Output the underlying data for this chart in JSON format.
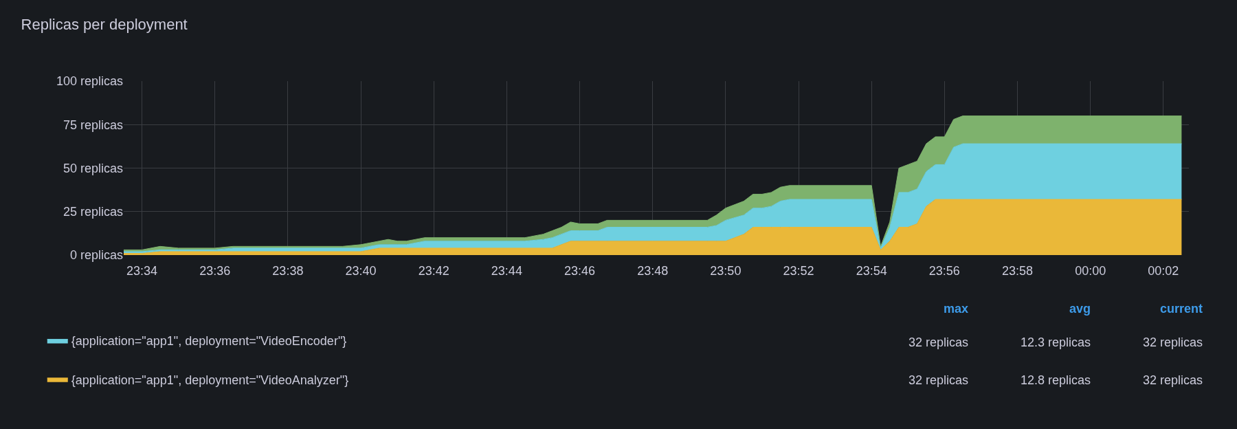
{
  "chart_data": {
    "type": "area",
    "title": "Replicas per deployment",
    "stacked": true,
    "x": [
      "--01-01T23:33:30",
      "--01-01T23:34",
      "--01-01T23:34:30",
      "--01-01T23:35",
      "--01-01T23:36",
      "--01-01T23:36:30",
      "--01-01T23:39:30",
      "--01-01T23:40",
      "--01-01T23:40:30",
      "--01-01T23:40:45",
      "--01-01T23:41",
      "--01-01T23:41:15",
      "--01-01T23:41:45",
      "--01-01T23:44:30",
      "--01-01T23:45",
      "--01-01T23:45:15",
      "--01-01T23:45:30",
      "--01-01T23:45:45",
      "--01-01T23:46",
      "--01-01T23:46:30",
      "--01-01T23:46:45",
      "--01-01T23:49:30",
      "--01-01T23:49:45",
      "--01-01T23:50",
      "--01-01T23:50:30",
      "--01-01T23:50:45",
      "--01-01T23:51",
      "--01-01T23:51:15",
      "--01-01T23:51:30",
      "--01-01T23:51:45",
      "--01-01T23:54",
      "--01-01T23:54:15",
      "--01-01T23:54:30",
      "--01-01T23:54:45",
      "--01-01T23:55",
      "--01-01T23:55:15",
      "--01-01T23:55:30",
      "--01-01T23:55:45",
      "--01-01T23:56",
      "--01-01T23:56:15",
      "--01-01T23:56:30",
      "--01-02T00:02:30"
    ],
    "series": [
      {
        "name": "{application=\"app1\", deployment=\"VideoAnalyzer\"}",
        "color": "#eab839",
        "values": [
          1,
          1,
          2,
          2,
          2,
          2,
          2,
          2,
          4,
          4,
          4,
          4,
          4,
          4,
          4,
          4,
          6,
          8,
          8,
          8,
          8,
          8,
          8,
          8,
          12,
          16,
          16,
          16,
          16,
          16,
          16,
          3,
          8,
          16,
          16,
          18,
          28,
          32,
          32,
          32,
          32,
          32
        ]
      },
      {
        "name": "{application=\"app1\", deployment=\"VideoEncoder\"}",
        "color": "#6ed0e0",
        "values": [
          1,
          1,
          1,
          1,
          1,
          2,
          2,
          2,
          2,
          2,
          2,
          2,
          4,
          4,
          5,
          6,
          6,
          6,
          6,
          6,
          8,
          8,
          9,
          12,
          11,
          11,
          11,
          12,
          15,
          16,
          16,
          1,
          8,
          20,
          20,
          20,
          20,
          20,
          20,
          30,
          32,
          32
        ]
      },
      {
        "color": "#7eb26d",
        "values": [
          1,
          1,
          2,
          1,
          1,
          1,
          1,
          2,
          2,
          3,
          2,
          2,
          2,
          2,
          3,
          4,
          4,
          5,
          4,
          4,
          4,
          4,
          6,
          7,
          8,
          8,
          8,
          8,
          8,
          8,
          8,
          1,
          3,
          14,
          16,
          16,
          16,
          16,
          16,
          16,
          16,
          16
        ]
      }
    ],
    "xlim": [
      "--01-01T23:33:30",
      "--01-02T00:02:42"
    ],
    "xticks": [
      {
        "value": "--01-01T23:34",
        "label": "23:34"
      },
      {
        "value": "--01-01T23:36",
        "label": "23:36"
      },
      {
        "value": "--01-01T23:38",
        "label": "23:38"
      },
      {
        "value": "--01-01T23:40",
        "label": "23:40"
      },
      {
        "value": "--01-01T23:42",
        "label": "23:42"
      },
      {
        "value": "--01-01T23:44",
        "label": "23:44"
      },
      {
        "value": "--01-01T23:46",
        "label": "23:46"
      },
      {
        "value": "--01-01T23:48",
        "label": "23:48"
      },
      {
        "value": "--01-01T23:50",
        "label": "23:50"
      },
      {
        "value": "--01-01T23:52",
        "label": "23:52"
      },
      {
        "value": "--01-01T23:54",
        "label": "23:54"
      },
      {
        "value": "--01-01T23:56",
        "label": "23:56"
      },
      {
        "value": "--01-01T23:58",
        "label": "23:58"
      },
      {
        "value": "--01-02T00:00",
        "label": "00:00"
      },
      {
        "value": "--01-02T00:02",
        "label": "00:02"
      }
    ],
    "ylim": [
      0,
      100
    ],
    "yticks": [
      {
        "value": 0,
        "label": "0 replicas"
      },
      {
        "value": 25,
        "label": "25 replicas"
      },
      {
        "value": 50,
        "label": "50 replicas"
      },
      {
        "value": 75,
        "label": "75 replicas"
      },
      {
        "value": 100,
        "label": "100 replicas"
      }
    ],
    "grid": true,
    "legend": "bottom",
    "annotations": [
      "max",
      "avg",
      "current",
      "32 replicas",
      "12.3 replicas",
      "32 replicas",
      "32 replicas",
      "12.8 replicas",
      "32 replicas"
    ]
  }
}
